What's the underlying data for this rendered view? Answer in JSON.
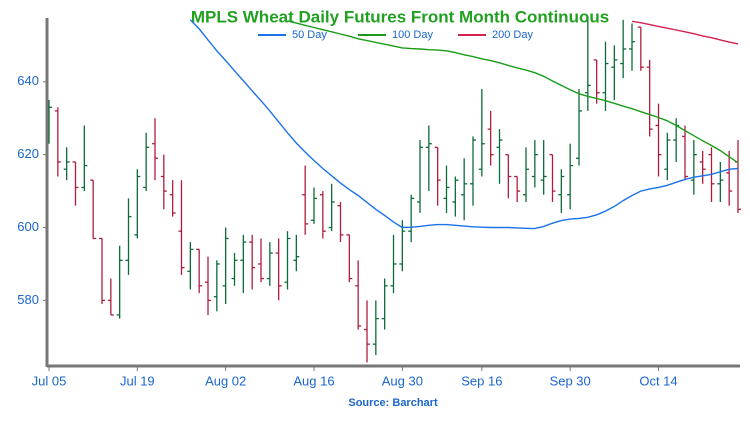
{
  "chart_data": {
    "type": "ohlc",
    "title": "MPLS Wheat Daily Futures Front Month Continuous",
    "source": "Source: Barchart",
    "categories": [
      "Jul 05",
      null,
      null,
      null,
      null,
      null,
      null,
      null,
      null,
      null,
      "Jul 19",
      null,
      null,
      null,
      null,
      null,
      null,
      null,
      null,
      null,
      "Aug 02",
      null,
      null,
      null,
      null,
      null,
      null,
      null,
      null,
      null,
      "Aug 16",
      null,
      null,
      null,
      null,
      null,
      null,
      null,
      null,
      null,
      "Aug 30",
      null,
      null,
      null,
      null,
      null,
      null,
      null,
      null,
      "Sep 16",
      null,
      null,
      null,
      null,
      null,
      null,
      null,
      null,
      null,
      "Sep 30",
      null,
      null,
      null,
      null,
      null,
      null,
      null,
      null,
      null,
      "Oct 14",
      null,
      null,
      null,
      null,
      null,
      null,
      null,
      null,
      null
    ],
    "open": [
      627,
      632,
      616,
      618,
      611,
      613,
      597,
      580,
      576,
      591,
      598,
      611,
      623,
      614,
      609,
      599,
      588,
      594,
      585,
      581,
      584,
      586,
      591,
      596,
      590,
      586,
      593,
      585,
      591,
      609,
      602,
      609,
      600,
      606,
      598,
      584,
      572,
      568,
      575,
      584,
      590,
      599,
      607,
      622,
      622,
      608,
      607,
      609,
      612,
      616,
      627,
      622,
      620,
      614,
      609,
      614,
      613,
      620,
      609,
      609,
      619,
      637,
      646,
      637,
      644,
      645,
      649,
      655,
      644,
      628,
      616,
      624,
      625,
      613,
      618,
      620,
      612,
      615,
      618
    ],
    "high": [
      635,
      633,
      622,
      618,
      628,
      613,
      597,
      586,
      595,
      608,
      616,
      626,
      630,
      620,
      613,
      613,
      596,
      594,
      592,
      591,
      600,
      593,
      598,
      598,
      597,
      596,
      597,
      599,
      598,
      617,
      611,
      610,
      612,
      607,
      598,
      591,
      580,
      580,
      586,
      598,
      602,
      609,
      624,
      628,
      622,
      617,
      614,
      619,
      625,
      638,
      632,
      627,
      620,
      614,
      622,
      624,
      624,
      620,
      616,
      623,
      638,
      657,
      646,
      651,
      650,
      657,
      656,
      655,
      646,
      634,
      626,
      630,
      628,
      624,
      621,
      622,
      618,
      621,
      624
    ],
    "low": [
      623,
      614,
      613,
      606,
      610,
      597,
      579,
      576,
      575,
      587,
      597,
      610,
      613,
      605,
      603,
      587,
      583,
      582,
      576,
      577,
      579,
      584,
      582,
      583,
      585,
      584,
      580,
      583,
      588,
      598,
      601,
      597,
      599,
      596,
      585,
      572,
      563,
      565,
      572,
      582,
      588,
      596,
      604,
      610,
      606,
      604,
      603,
      602,
      606,
      614,
      617,
      612,
      608,
      607,
      607,
      611,
      609,
      607,
      604,
      605,
      617,
      632,
      634,
      632,
      635,
      641,
      643,
      643,
      625,
      614,
      613,
      618,
      613,
      609,
      612,
      607,
      607,
      606,
      604
    ],
    "close": [
      633,
      618,
      618,
      611,
      617,
      597,
      580,
      576,
      591,
      603,
      614,
      622,
      619,
      610,
      604,
      589,
      594,
      584,
      580,
      590,
      597,
      591,
      596,
      589,
      586,
      593,
      584,
      597,
      592,
      601,
      608,
      599,
      607,
      598,
      586,
      573,
      568,
      575,
      584,
      590,
      599,
      608,
      622,
      623,
      613,
      611,
      613,
      612,
      624,
      623,
      620,
      624,
      614,
      610,
      616,
      620,
      614,
      610,
      614,
      617,
      632,
      639,
      637,
      645,
      646,
      649,
      651,
      644,
      627,
      620,
      624,
      628,
      614,
      620,
      616,
      612,
      613,
      610,
      605
    ],
    "up_color": "#0d6b38",
    "down_color": "#b01c3c",
    "series": [
      {
        "name": "50 Day",
        "color": "#1a73e8",
        "values": [
          null,
          null,
          null,
          null,
          null,
          null,
          null,
          null,
          null,
          null,
          null,
          null,
          null,
          null,
          null,
          null,
          657.0,
          654.5,
          651.5,
          648.5,
          645.8,
          643,
          640.3,
          637.5,
          634.8,
          632,
          629,
          626,
          623.2,
          620.7,
          618.4,
          616.2,
          614.2,
          612.2,
          610.4,
          608.8,
          606.9,
          605,
          603.3,
          601.5,
          600,
          600.1,
          600.3,
          600.6,
          600.8,
          600.8,
          600.6,
          600.4,
          600.2,
          600.1,
          600,
          600,
          600,
          599.9,
          599.8,
          599.7,
          600.3,
          601.2,
          601.9,
          602.3,
          602.5,
          602.8,
          603.5,
          604.5,
          605.8,
          607.4,
          608.8,
          610,
          610.6,
          611,
          611.6,
          612.4,
          613.2,
          613.8,
          614.2,
          614.6,
          615.3,
          616,
          616.2
        ]
      },
      {
        "name": "100 Day",
        "color": "#1a9c1a",
        "values": [
          null,
          null,
          null,
          null,
          null,
          null,
          null,
          null,
          null,
          null,
          null,
          null,
          null,
          null,
          null,
          null,
          null,
          null,
          null,
          null,
          null,
          null,
          null,
          null,
          null,
          null,
          null,
          656.7,
          656.1,
          655.5,
          654.9,
          654.3,
          653.7,
          653.1,
          652.5,
          651.8,
          651.3,
          650.8,
          650.3,
          649.8,
          649.3,
          649.1,
          649,
          648.8,
          648.7,
          648.5,
          648,
          647.4,
          646.9,
          646.3,
          645.8,
          645.2,
          644.5,
          643.8,
          643.2,
          642.5,
          641.5,
          640.2,
          639,
          637.8,
          636.7,
          636,
          635.4,
          634.8,
          634.1,
          633.3,
          632.6,
          631.8,
          631,
          630.2,
          629.3,
          628,
          626.6,
          625.2,
          623.8,
          622.5,
          621.1,
          619.4,
          617.8
        ]
      },
      {
        "name": "200 Day",
        "color": "#d42050",
        "values": [
          null,
          null,
          null,
          null,
          null,
          null,
          null,
          null,
          null,
          null,
          null,
          null,
          null,
          null,
          null,
          null,
          null,
          null,
          null,
          null,
          null,
          null,
          null,
          null,
          null,
          null,
          null,
          null,
          null,
          null,
          null,
          null,
          null,
          null,
          null,
          null,
          null,
          null,
          null,
          null,
          null,
          null,
          null,
          null,
          null,
          null,
          null,
          null,
          null,
          null,
          null,
          null,
          null,
          null,
          null,
          null,
          null,
          null,
          null,
          null,
          null,
          null,
          null,
          null,
          null,
          null,
          656.6,
          656.2,
          655.7,
          655.2,
          654.7,
          654.2,
          653.7,
          653.2,
          652.6,
          652.1,
          651.5,
          650.9,
          650.4
        ]
      }
    ],
    "ylim": [
      562,
      657.5
    ],
    "yticks": [
      580,
      600,
      620,
      640
    ]
  }
}
